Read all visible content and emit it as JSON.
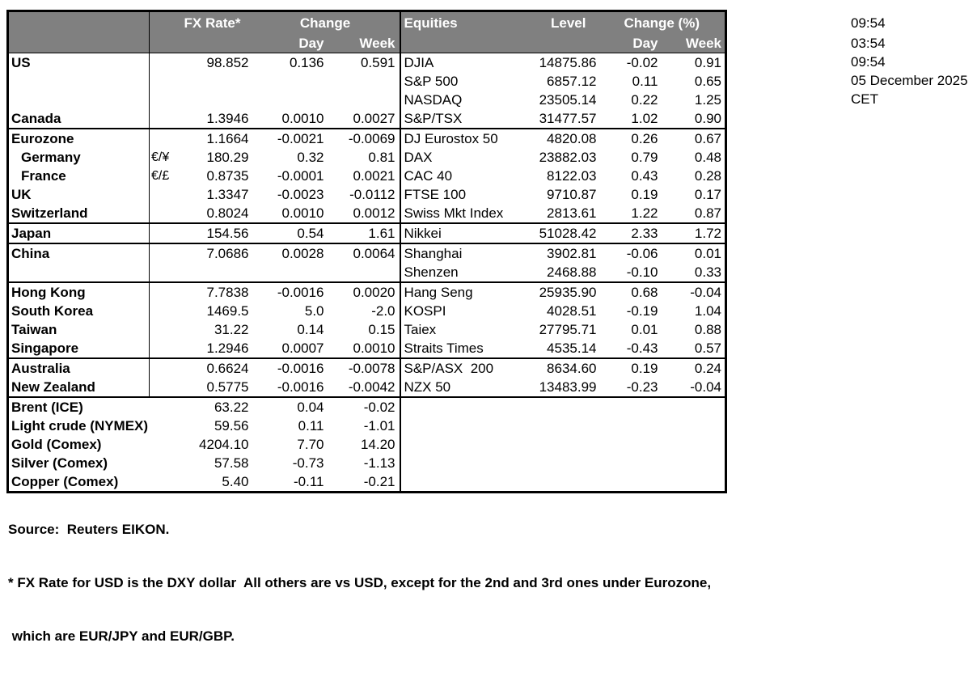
{
  "colors": {
    "header_bg": "#808080",
    "header_text": "#ffffff",
    "border": "#000000",
    "body_text": "#000000",
    "page_bg": "#ffffff"
  },
  "table": {
    "header": {
      "fx_rate": "FX Rate*",
      "change": "Change",
      "day": "Day",
      "week": "Week",
      "equities": "Equities",
      "level": "Level",
      "change_pct": "Change (%)"
    },
    "rows": [
      {
        "fx_name": "US",
        "fx_pair": "",
        "fx_rate": "98.852",
        "fx_day": "0.136",
        "fx_week": "0.591",
        "eq_name": "DJIA",
        "eq_level": "14875.86",
        "eq_day": "-0.02",
        "eq_week": "0.91",
        "sep": false,
        "indent": false,
        "fx_wide": false
      },
      {
        "fx_name": "",
        "fx_pair": "",
        "fx_rate": "",
        "fx_day": "",
        "fx_week": "",
        "eq_name": "S&P 500",
        "eq_level": "6857.12",
        "eq_day": "0.11",
        "eq_week": "0.65",
        "sep": false,
        "indent": false,
        "fx_wide": false
      },
      {
        "fx_name": "",
        "fx_pair": "",
        "fx_rate": "",
        "fx_day": "",
        "fx_week": "",
        "eq_name": "NASDAQ",
        "eq_level": "23505.14",
        "eq_day": "0.22",
        "eq_week": "1.25",
        "sep": false,
        "indent": false,
        "fx_wide": false
      },
      {
        "fx_name": "Canada",
        "fx_pair": "",
        "fx_rate": "1.3946",
        "fx_day": "0.0010",
        "fx_week": "0.0027",
        "eq_name": "S&P/TSX",
        "eq_level": "31477.57",
        "eq_day": "1.02",
        "eq_week": "0.90",
        "sep": false,
        "indent": false,
        "fx_wide": false
      },
      {
        "fx_name": "Eurozone",
        "fx_pair": "",
        "fx_rate": "1.1664",
        "fx_day": "-0.0021",
        "fx_week": "-0.0069",
        "eq_name": "DJ Eurostox 50",
        "eq_level": "4820.08",
        "eq_day": "0.26",
        "eq_week": "0.67",
        "sep": true,
        "indent": false,
        "fx_wide": false
      },
      {
        "fx_name": "Germany",
        "fx_pair": "€/¥",
        "fx_rate": "180.29",
        "fx_day": "0.32",
        "fx_week": "0.81",
        "eq_name": "DAX",
        "eq_level": "23882.03",
        "eq_day": "0.79",
        "eq_week": "0.48",
        "sep": false,
        "indent": true,
        "fx_wide": false
      },
      {
        "fx_name": "France",
        "fx_pair": "€/£",
        "fx_rate": "0.8735",
        "fx_day": "-0.0001",
        "fx_week": "0.0021",
        "eq_name": "CAC 40",
        "eq_level": "8122.03",
        "eq_day": "0.43",
        "eq_week": "0.28",
        "sep": false,
        "indent": true,
        "fx_wide": false
      },
      {
        "fx_name": "UK",
        "fx_pair": "",
        "fx_rate": "1.3347",
        "fx_day": "-0.0023",
        "fx_week": "-0.0112",
        "eq_name": "FTSE 100",
        "eq_level": "9710.87",
        "eq_day": "0.19",
        "eq_week": "0.17",
        "sep": false,
        "indent": false,
        "fx_wide": false
      },
      {
        "fx_name": "Switzerland",
        "fx_pair": "",
        "fx_rate": "0.8024",
        "fx_day": "0.0010",
        "fx_week": "0.0012",
        "eq_name": "Swiss Mkt Index",
        "eq_level": "2813.61",
        "eq_day": "1.22",
        "eq_week": "0.87",
        "sep": false,
        "indent": false,
        "fx_wide": false
      },
      {
        "fx_name": "Japan",
        "fx_pair": "",
        "fx_rate": "154.56",
        "fx_day": "0.54",
        "fx_week": "1.61",
        "eq_name": "Nikkei",
        "eq_level": "51028.42",
        "eq_day": "2.33",
        "eq_week": "1.72",
        "sep": true,
        "indent": false,
        "fx_wide": false
      },
      {
        "fx_name": "China",
        "fx_pair": "",
        "fx_rate": "7.0686",
        "fx_day": "0.0028",
        "fx_week": "0.0064",
        "eq_name": "Shanghai",
        "eq_level": "3902.81",
        "eq_day": "-0.06",
        "eq_week": "0.01",
        "sep": true,
        "indent": false,
        "fx_wide": false
      },
      {
        "fx_name": "",
        "fx_pair": "",
        "fx_rate": "",
        "fx_day": "",
        "fx_week": "",
        "eq_name": "Shenzen",
        "eq_level": "2468.88",
        "eq_day": "-0.10",
        "eq_week": "0.33",
        "sep": false,
        "indent": false,
        "fx_wide": false
      },
      {
        "fx_name": "Hong Kong",
        "fx_pair": "",
        "fx_rate": "7.7838",
        "fx_day": "-0.0016",
        "fx_week": "0.0020",
        "eq_name": "Hang Seng",
        "eq_level": "25935.90",
        "eq_day": "0.68",
        "eq_week": "-0.04",
        "sep": true,
        "indent": false,
        "fx_wide": false
      },
      {
        "fx_name": "South Korea",
        "fx_pair": "",
        "fx_rate": "1469.5",
        "fx_day": "5.0",
        "fx_week": "-2.0",
        "eq_name": "KOSPI",
        "eq_level": "4028.51",
        "eq_day": "-0.19",
        "eq_week": "1.04",
        "sep": false,
        "indent": false,
        "fx_wide": false
      },
      {
        "fx_name": "Taiwan",
        "fx_pair": "",
        "fx_rate": "31.22",
        "fx_day": "0.14",
        "fx_week": "0.15",
        "eq_name": "Taiex",
        "eq_level": "27795.71",
        "eq_day": "0.01",
        "eq_week": "0.88",
        "sep": false,
        "indent": false,
        "fx_wide": false
      },
      {
        "fx_name": "Singapore",
        "fx_pair": "",
        "fx_rate": "1.2946",
        "fx_day": "0.0007",
        "fx_week": "0.0010",
        "eq_name": "Straits Times",
        "eq_level": "4535.14",
        "eq_day": "-0.43",
        "eq_week": "0.57",
        "sep": false,
        "indent": false,
        "fx_wide": false
      },
      {
        "fx_name": "Australia",
        "fx_pair": "",
        "fx_rate": "0.6624",
        "fx_day": "-0.0016",
        "fx_week": "-0.0078",
        "eq_name": "S&P/ASX  200",
        "eq_level": "8634.60",
        "eq_day": "0.19",
        "eq_week": "0.24",
        "sep": true,
        "indent": false,
        "fx_wide": false
      },
      {
        "fx_name": "New Zealand",
        "fx_pair": "",
        "fx_rate": "0.5775",
        "fx_day": "-0.0016",
        "fx_week": "-0.0042",
        "eq_name": "NZX 50",
        "eq_level": "13483.99",
        "eq_day": "-0.23",
        "eq_week": "-0.04",
        "sep": false,
        "indent": false,
        "fx_wide": false
      },
      {
        "fx_name": "Brent (ICE)",
        "fx_pair": "",
        "fx_rate": "63.22",
        "fx_day": "0.04",
        "fx_week": "-0.02",
        "eq_name": "",
        "eq_level": "",
        "eq_day": "",
        "eq_week": "",
        "sep": true,
        "indent": false,
        "fx_wide": true
      },
      {
        "fx_name": "Light crude (NYMEX)",
        "fx_pair": "",
        "fx_rate": "59.56",
        "fx_day": "0.11",
        "fx_week": "-1.01",
        "eq_name": "",
        "eq_level": "",
        "eq_day": "",
        "eq_week": "",
        "sep": false,
        "indent": false,
        "fx_wide": true
      },
      {
        "fx_name": "Gold (Comex)",
        "fx_pair": "",
        "fx_rate": "4204.10",
        "fx_day": "7.70",
        "fx_week": "14.20",
        "eq_name": "",
        "eq_level": "",
        "eq_day": "",
        "eq_week": "",
        "sep": false,
        "indent": false,
        "fx_wide": true
      },
      {
        "fx_name": "Silver (Comex)",
        "fx_pair": "",
        "fx_rate": "57.58",
        "fx_day": "-0.73",
        "fx_week": "-1.13",
        "eq_name": "",
        "eq_level": "",
        "eq_day": "",
        "eq_week": "",
        "sep": false,
        "indent": false,
        "fx_wide": true
      },
      {
        "fx_name": "Copper (Comex)",
        "fx_pair": "",
        "fx_rate": "5.40",
        "fx_day": "-0.11",
        "fx_week": "-0.21",
        "eq_name": "",
        "eq_level": "",
        "eq_day": "",
        "eq_week": "",
        "sep": false,
        "indent": false,
        "fx_wide": true
      }
    ]
  },
  "timestamps": [
    "09:54",
    "03:54",
    "09:54",
    "05 December 2025",
    "CET"
  ],
  "footer": {
    "source_line": "Source:  Reuters EIKON.",
    "note_line1": "* FX Rate for USD is the DXY dollar  All others are vs USD, except for the 2nd and 3rd ones under Eurozone,",
    "note_line2": " which are EUR/JPY and EUR/GBP."
  }
}
